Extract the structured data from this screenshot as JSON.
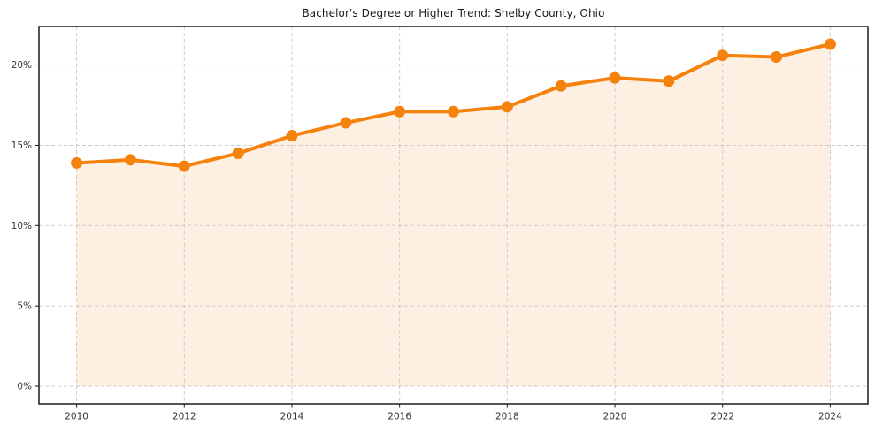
{
  "figure": {
    "title": "Bachelor's Degree or Higher Trend: Shelby County, Ohio"
  },
  "chart_data": {
    "type": "line",
    "title": "Bachelor's Degree or Higher Trend: Shelby County, Ohio",
    "x": [
      2010,
      2011,
      2012,
      2013,
      2014,
      2015,
      2016,
      2017,
      2018,
      2019,
      2020,
      2021,
      2022,
      2023,
      2024
    ],
    "values": [
      13.9,
      14.1,
      13.7,
      14.5,
      15.6,
      16.4,
      17.1,
      17.1,
      17.4,
      18.7,
      19.2,
      19.0,
      20.6,
      20.5,
      21.3
    ],
    "unit": "%",
    "x_ticks": [
      2010,
      2012,
      2014,
      2016,
      2018,
      2020,
      2022,
      2024
    ],
    "x_tick_labels": [
      "2010",
      "2012",
      "2014",
      "2016",
      "2018",
      "2020",
      "2022",
      "2024"
    ],
    "y_ticks": [
      0,
      5,
      10,
      15,
      20
    ],
    "y_tick_labels": [
      "0%",
      "5%",
      "10%",
      "15%",
      "20%"
    ],
    "xlim": [
      2009.3,
      2024.7
    ],
    "ylim": [
      -1.1,
      22.4
    ],
    "grid": true,
    "grid_style": "dashed",
    "legend": false,
    "marker": "circle",
    "area_fill_to": 0,
    "colors": {
      "line": "#f5820d",
      "marker": "#f5820d",
      "fill": "#fdf0e3",
      "grid": "#cccccc",
      "axis": "#1a1a1a",
      "tick_text": "#333333",
      "title_text": "#1a1a1a",
      "background": "#ffffff"
    }
  }
}
